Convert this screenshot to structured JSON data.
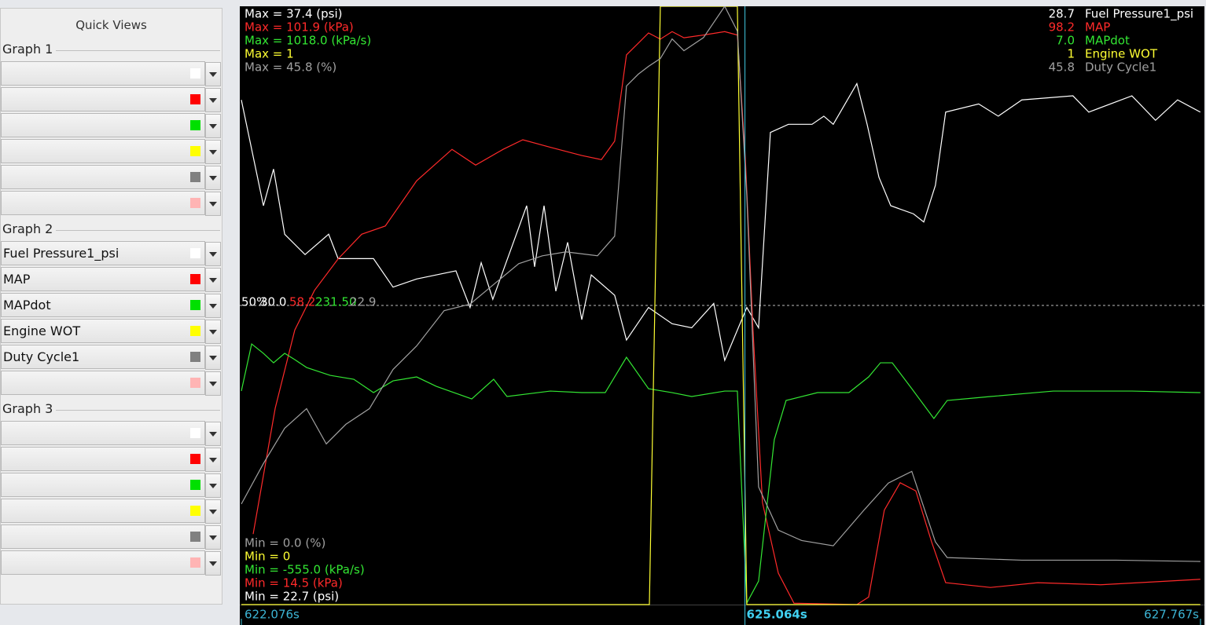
{
  "sidebar": {
    "title": "Quick Views",
    "groups": [
      {
        "label": "Graph 1",
        "rows": [
          {
            "color": "#ffffff"
          },
          {
            "color": "#ff0000"
          },
          {
            "color": "#00e000"
          },
          {
            "color": "#ffff00"
          },
          {
            "color": "#808080"
          },
          {
            "color": "#ffb4b4"
          }
        ]
      },
      {
        "label": "Graph 2",
        "rows": [
          {
            "name": "Fuel Pressure1_psi",
            "color": "#ffffff"
          },
          {
            "name": "MAP",
            "color": "#ff0000"
          },
          {
            "name": "MAPdot",
            "color": "#00e000"
          },
          {
            "name": "Engine WOT",
            "color": "#ffff00"
          },
          {
            "name": "Duty Cycle1",
            "color": "#808080"
          },
          {
            "color": "#ffb4b4"
          }
        ]
      },
      {
        "label": "Graph 3",
        "rows": [
          {
            "color": "#ffffff"
          },
          {
            "color": "#ff0000"
          },
          {
            "color": "#00e000"
          },
          {
            "color": "#ffff00"
          },
          {
            "color": "#808080"
          },
          {
            "color": "#ffb4b4"
          }
        ]
      }
    ]
  },
  "chart_data": {
    "type": "line",
    "xlim": [
      622.076,
      627.767
    ],
    "xticks": [
      {
        "value": 622.076,
        "label": "622.076s"
      },
      {
        "value": 627.767,
        "label": "627.767s"
      }
    ],
    "cursor": {
      "value": 625.064,
      "label": "625.064s"
    },
    "mid_label": "50%",
    "series": [
      {
        "name": "Fuel Pressure1_psi",
        "color": "#ffffff",
        "ylim": [
          22.7,
          37.4
        ],
        "max_label": "Max = 37.4 (psi)",
        "min_label": "Min = 22.7 (psi)",
        "mid_value": "30.0",
        "cursor_readout": "28.7",
        "x": [
          622.076,
          622.207,
          622.267,
          622.333,
          622.454,
          622.594,
          622.65,
          622.86,
          622.976,
          623.116,
          623.349,
          623.433,
          623.499,
          623.568,
          623.769,
          623.816,
          623.872,
          623.942,
          624.012,
          624.096,
          624.152,
          624.291,
          624.361,
          624.492,
          624.632,
          624.748,
          624.879,
          624.944,
          625.075,
          625.145,
          625.215,
          625.322,
          625.462,
          625.532,
          625.588,
          625.658,
          625.728,
          625.789,
          625.859,
          625.929,
          626.064,
          626.125,
          626.194,
          626.255,
          626.451,
          626.567,
          626.707,
          627.01,
          627.104,
          627.36,
          627.5,
          627.631,
          627.766
        ],
        "values": [
          35.1,
          32.5,
          33.4,
          31.8,
          31.3,
          31.8,
          31.2,
          31.2,
          30.5,
          30.7,
          30.9,
          30.0,
          31.1,
          30.2,
          32.5,
          31.0,
          32.5,
          30.4,
          31.6,
          29.7,
          30.8,
          30.3,
          29.2,
          30.0,
          29.6,
          29.5,
          30.1,
          28.7,
          30.0,
          29.5,
          34.3,
          34.5,
          34.5,
          34.7,
          34.5,
          35.0,
          35.5,
          34.5,
          33.2,
          32.5,
          32.3,
          32.1,
          33.0,
          34.8,
          35.0,
          34.7,
          35.1,
          35.2,
          34.8,
          35.2,
          34.6,
          35.1,
          34.8
        ]
      },
      {
        "name": "MAP",
        "color": "#ff2a2a",
        "ylim": [
          14.5,
          101.9
        ],
        "max_label": "Max = 101.9 (kPa)",
        "min_label": "Min = 14.5 (kPa)",
        "mid_value": "58.2",
        "cursor_readout": "98.2",
        "x": [
          622.146,
          622.277,
          622.393,
          622.51,
          622.65,
          622.79,
          622.93,
          623.116,
          623.326,
          623.466,
          623.629,
          623.746,
          623.909,
          624.096,
          624.212,
          624.291,
          624.361,
          624.431,
          624.492,
          624.562,
          624.632,
          624.702,
          624.818,
          624.944,
          625.019,
          625.066,
          625.112,
          625.168,
          625.262,
          625.355,
          625.728,
          625.798,
          625.891,
          625.985,
          626.078,
          626.171,
          626.255,
          626.521,
          626.801,
          627.174,
          627.549,
          627.766
        ],
        "values": [
          24.8,
          43.2,
          54.6,
          60.4,
          65.0,
          68.6,
          69.8,
          76.4,
          81.0,
          78.7,
          81.0,
          82.4,
          81.3,
          80.1,
          79.5,
          82.2,
          94.8,
          96.5,
          98.0,
          97.1,
          98.2,
          97.3,
          97.7,
          98.2,
          97.7,
          79.9,
          54.6,
          29.4,
          19.1,
          14.7,
          14.5,
          15.6,
          28.3,
          32.3,
          31.1,
          23.7,
          17.7,
          17.0,
          17.7,
          17.4,
          17.9,
          18.2
        ]
      },
      {
        "name": "MAPdot",
        "color": "#33e633",
        "ylim": [
          -555.0,
          1018.0
        ],
        "max_label": "Max = 1018.0 (kPa/s)",
        "min_label": "Min = -555.0 (kPa/s)",
        "mid_value": "231.50",
        "cursor_readout": "7.0",
        "x": [
          622.076,
          622.137,
          622.207,
          622.267,
          622.333,
          622.393,
          622.463,
          622.603,
          622.743,
          622.86,
          622.976,
          623.116,
          623.233,
          623.443,
          623.573,
          623.652,
          623.909,
          624.096,
          624.235,
          624.361,
          624.492,
          624.632,
          624.748,
          624.944,
          625.019,
          625.075,
          625.145,
          625.238,
          625.308,
          625.495,
          625.681,
          625.798,
          625.868,
          625.938,
          626.054,
          626.185,
          626.264,
          626.521,
          626.894,
          627.36,
          627.766
        ],
        "values": [
          6.4,
          130.2,
          105.5,
          80.7,
          105.5,
          89.0,
          68.3,
          47.7,
          37.4,
          2.3,
          33.2,
          43.6,
          18.8,
          -14.2,
          37.4,
          -8.0,
          6.4,
          2.3,
          2.3,
          95.2,
          12.6,
          2.3,
          -8.0,
          6.4,
          6.4,
          -550.9,
          -493.1,
          -121.6,
          -18.4,
          2.3,
          2.3,
          43.6,
          80.7,
          80.7,
          12.6,
          -65.8,
          -18.4,
          -8.0,
          6.4,
          6.4,
          2.3
        ]
      },
      {
        "name": "Engine WOT",
        "color": "#ffff33",
        "ylim": [
          0,
          1
        ],
        "max_label": "Max = 1",
        "min_label": "Min = 0",
        "cursor_readout": "1",
        "x": [
          622.076,
          624.497,
          624.562,
          625.019,
          625.075,
          627.766
        ],
        "values": [
          0,
          0,
          1,
          1,
          0,
          0
        ]
      },
      {
        "name": "Duty Cycle1",
        "color": "#a0a0a0",
        "ylim": [
          0,
          45.8
        ],
        "max_label": "Max = 45.8 (%)",
        "min_label": "Min = 0.0 (%)",
        "mid_value": "22.9",
        "cursor_readout": "45.8",
        "x": [
          622.076,
          622.207,
          622.333,
          622.463,
          622.58,
          622.696,
          622.836,
          622.976,
          623.116,
          623.279,
          623.433,
          623.582,
          623.722,
          623.862,
          624.002,
          624.189,
          624.291,
          624.361,
          624.431,
          624.492,
          624.562,
          624.632,
          624.702,
          624.818,
          624.944,
          625.019,
          625.075,
          625.145,
          625.262,
          625.401,
          625.588,
          625.775,
          625.915,
          626.054,
          626.194,
          626.264,
          626.707,
          627.267,
          627.766
        ],
        "values": [
          7.7,
          10.8,
          13.5,
          15.0,
          12.3,
          13.8,
          15.0,
          18.0,
          19.8,
          22.5,
          23.0,
          24.6,
          26.1,
          26.7,
          27.0,
          26.7,
          28.2,
          39.7,
          40.6,
          41.2,
          41.8,
          43.3,
          42.4,
          43.4,
          45.8,
          43.9,
          31.3,
          9.0,
          5.7,
          4.9,
          4.5,
          7.3,
          9.3,
          10.2,
          4.8,
          3.6,
          3.4,
          3.4,
          3.3
        ]
      }
    ]
  }
}
